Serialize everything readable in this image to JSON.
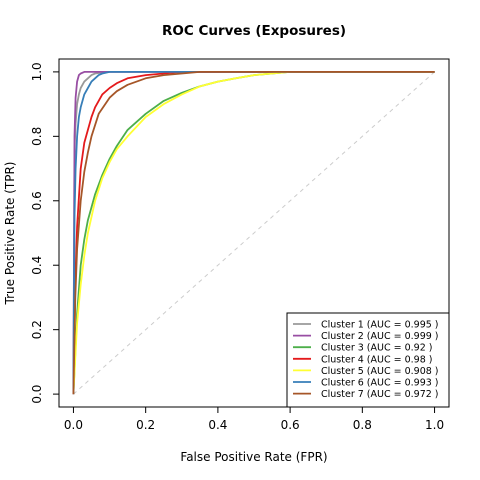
{
  "chart_data": {
    "type": "line",
    "title": "ROC Curves (Exposures)",
    "xlabel": "False Positive Rate (FPR)",
    "ylabel": "True Positive Rate (TPR)",
    "xlim": [
      -0.04,
      1.04
    ],
    "ylim": [
      -0.04,
      1.04
    ],
    "x_ticks": [
      0,
      0.2,
      0.4,
      0.6,
      0.8,
      1
    ],
    "y_ticks": [
      0,
      0.2,
      0.4,
      0.6,
      0.8,
      1
    ],
    "x_tick_labels": [
      "0.0",
      "0.2",
      "0.4",
      "0.6",
      "0.8",
      "1.0"
    ],
    "y_tick_labels": [
      "0.0",
      "0.2",
      "0.4",
      "0.6",
      "0.8",
      "1.0"
    ],
    "grid": false,
    "legend_position": "bottom-right",
    "reference_line": {
      "x": [
        0,
        1
      ],
      "y": [
        0,
        1
      ],
      "color": "#cccccc",
      "style": "dashed"
    },
    "series": [
      {
        "name": "Cluster 1 (AUC =  0.995 )",
        "color": "#999999",
        "x": [
          0,
          0.003,
          0.006,
          0.01,
          0.015,
          0.02,
          0.03,
          0.04,
          0.05,
          0.06,
          0.08,
          0.1,
          0.15,
          0.2,
          0.4,
          1.0
        ],
        "y": [
          0,
          0.75,
          0.84,
          0.9,
          0.93,
          0.95,
          0.97,
          0.98,
          0.99,
          0.995,
          0.998,
          1.0,
          1.0,
          1.0,
          1.0,
          1.0
        ]
      },
      {
        "name": "Cluster 2 (AUC =  0.999 )",
        "color": "#984ea3",
        "x": [
          0,
          0.003,
          0.006,
          0.01,
          0.015,
          0.02,
          0.03,
          0.05,
          0.1,
          0.3,
          1.0
        ],
        "y": [
          0,
          0.8,
          0.92,
          0.97,
          0.99,
          0.995,
          1.0,
          1.0,
          1.0,
          1.0,
          1.0
        ]
      },
      {
        "name": "Cluster 3 (AUC =  0.92 )",
        "color": "#4daf4a",
        "x": [
          0,
          0.01,
          0.02,
          0.03,
          0.04,
          0.05,
          0.06,
          0.08,
          0.1,
          0.12,
          0.15,
          0.2,
          0.25,
          0.3,
          0.35,
          0.4,
          0.45,
          0.5,
          0.55,
          0.6,
          0.7,
          1.0
        ],
        "y": [
          0,
          0.25,
          0.4,
          0.48,
          0.54,
          0.58,
          0.62,
          0.68,
          0.73,
          0.77,
          0.82,
          0.87,
          0.91,
          0.935,
          0.955,
          0.97,
          0.98,
          0.99,
          0.995,
          1.0,
          1.0,
          1.0
        ]
      },
      {
        "name": "Cluster 4 (AUC =  0.98 )",
        "color": "#e41a1c",
        "x": [
          0,
          0.005,
          0.01,
          0.02,
          0.03,
          0.04,
          0.05,
          0.06,
          0.08,
          0.1,
          0.12,
          0.15,
          0.2,
          0.25,
          0.3,
          0.4,
          1.0
        ],
        "y": [
          0,
          0.35,
          0.52,
          0.7,
          0.78,
          0.82,
          0.86,
          0.89,
          0.93,
          0.95,
          0.965,
          0.98,
          0.99,
          0.995,
          1.0,
          1.0,
          1.0
        ]
      },
      {
        "name": "Cluster 5 (AUC =  0.908 )",
        "color": "#ffff33",
        "x": [
          0,
          0.01,
          0.02,
          0.03,
          0.04,
          0.05,
          0.06,
          0.08,
          0.1,
          0.12,
          0.15,
          0.2,
          0.25,
          0.3,
          0.35,
          0.4,
          0.45,
          0.5,
          0.55,
          0.6,
          0.7,
          1.0
        ],
        "y": [
          0,
          0.22,
          0.34,
          0.43,
          0.5,
          0.55,
          0.6,
          0.67,
          0.72,
          0.76,
          0.8,
          0.86,
          0.9,
          0.93,
          0.955,
          0.97,
          0.98,
          0.99,
          0.995,
          1.0,
          1.0,
          1.0
        ]
      },
      {
        "name": "Cluster 6 (AUC =  0.993 )",
        "color": "#377eb8",
        "x": [
          0,
          0.003,
          0.006,
          0.01,
          0.015,
          0.02,
          0.03,
          0.04,
          0.05,
          0.06,
          0.07,
          0.08,
          0.1,
          0.15,
          0.3,
          1.0
        ],
        "y": [
          0,
          0.55,
          0.7,
          0.8,
          0.86,
          0.89,
          0.93,
          0.95,
          0.97,
          0.98,
          0.99,
          0.995,
          1.0,
          1.0,
          1.0,
          1.0
        ]
      },
      {
        "name": "Cluster 7 (AUC =  0.972 )",
        "color": "#a65628",
        "x": [
          0,
          0.005,
          0.01,
          0.02,
          0.03,
          0.04,
          0.05,
          0.07,
          0.1,
          0.12,
          0.15,
          0.2,
          0.25,
          0.3,
          0.35,
          0.4,
          0.5,
          1.0
        ],
        "y": [
          0,
          0.3,
          0.45,
          0.6,
          0.69,
          0.75,
          0.8,
          0.87,
          0.92,
          0.94,
          0.96,
          0.98,
          0.99,
          0.995,
          1.0,
          1.0,
          1.0,
          1.0
        ]
      }
    ]
  }
}
